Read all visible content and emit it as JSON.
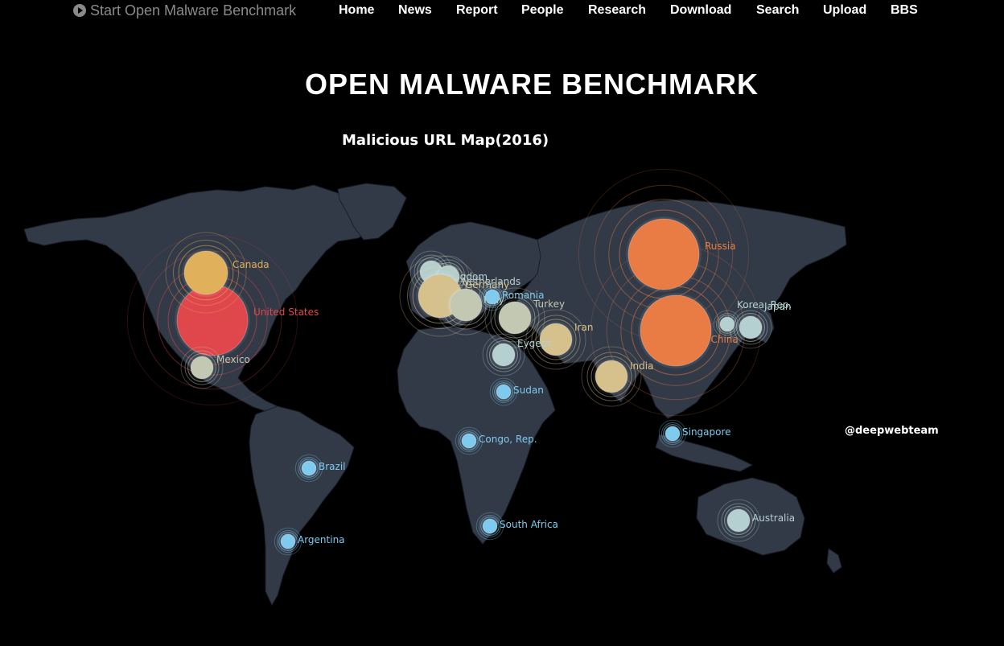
{
  "nav": {
    "brand": "Start Open Malware Benchmark",
    "items": [
      "Home",
      "News",
      "Report",
      "People",
      "Research",
      "Download",
      "Search",
      "Upload",
      "BBS"
    ]
  },
  "page_title": "OPEN MALWARE BENCHMARK",
  "map": {
    "title": "Malicious URL Map(2016)",
    "watermark": "@deepwebteam",
    "colors": {
      "land": "#323a48",
      "red": "#e0474c",
      "orange": "#e87c44",
      "gold": "#e0b05a",
      "tan": "#d6c08c",
      "sage": "#c2c8b2",
      "pale": "#b4d0d0",
      "blue": "#7ecbef"
    },
    "countries": [
      {
        "name": "United States",
        "level": 6,
        "color": "red"
      },
      {
        "name": "Canada",
        "level": 4,
        "color": "gold"
      },
      {
        "name": "Mexico",
        "level": 2,
        "color": "sage"
      },
      {
        "name": "Russia",
        "level": 6,
        "color": "orange"
      },
      {
        "name": "China",
        "level": 6,
        "color": "orange"
      },
      {
        "name": "Kingdom",
        "level": 2,
        "color": "pale"
      },
      {
        "name": "Netherlands",
        "level": 2,
        "color": "pale"
      },
      {
        "name": "Germany",
        "level": 4,
        "color": "tan"
      },
      {
        "name": "Italy",
        "level": 3,
        "color": "sage"
      },
      {
        "name": "Romania",
        "level": 1,
        "color": "blue"
      },
      {
        "name": "Turkey",
        "level": 3,
        "color": "sage"
      },
      {
        "name": "Iran",
        "level": 3,
        "color": "tan"
      },
      {
        "name": "Eygept",
        "level": 2,
        "color": "pale"
      },
      {
        "name": "India",
        "level": 3,
        "color": "tan"
      },
      {
        "name": "Sudan",
        "level": 1,
        "color": "blue"
      },
      {
        "name": "Singapore",
        "level": 1,
        "color": "blue"
      },
      {
        "name": "Congo, Rep.",
        "level": 1,
        "color": "blue"
      },
      {
        "name": "Brazil",
        "level": 1,
        "color": "blue"
      },
      {
        "name": "Argentina",
        "level": 1,
        "color": "blue"
      },
      {
        "name": "South Africa",
        "level": 1,
        "color": "blue"
      },
      {
        "name": "Australia",
        "level": 2,
        "color": "pale"
      },
      {
        "name": "Japan",
        "level": 2,
        "color": "pale"
      },
      {
        "name": "Korea, Rep.",
        "level": 1,
        "color": "pale"
      }
    ]
  }
}
